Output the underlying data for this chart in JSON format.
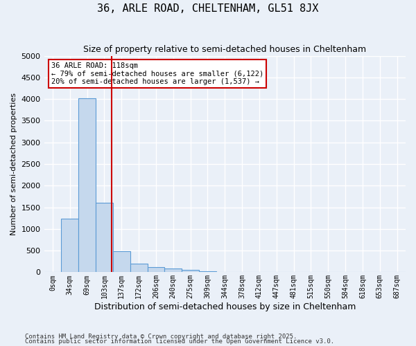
{
  "title": "36, ARLE ROAD, CHELTENHAM, GL51 8JX",
  "subtitle": "Size of property relative to semi-detached houses in Cheltenham",
  "xlabel": "Distribution of semi-detached houses by size in Cheltenham",
  "ylabel": "Number of semi-detached properties",
  "footnote1": "Contains HM Land Registry data © Crown copyright and database right 2025.",
  "footnote2": "Contains public sector information licensed under the Open Government Licence v3.0.",
  "bin_labels": [
    "0sqm",
    "34sqm",
    "69sqm",
    "103sqm",
    "137sqm",
    "172sqm",
    "206sqm",
    "240sqm",
    "275sqm",
    "309sqm",
    "344sqm",
    "378sqm",
    "412sqm",
    "447sqm",
    "481sqm",
    "515sqm",
    "550sqm",
    "584sqm",
    "618sqm",
    "653sqm",
    "687sqm"
  ],
  "bar_values": [
    10,
    1230,
    4020,
    1600,
    480,
    200,
    120,
    90,
    55,
    20,
    0,
    0,
    0,
    0,
    0,
    0,
    0,
    0,
    0,
    0,
    0
  ],
  "bar_color": "#c5d8ed",
  "bar_edge_color": "#5b9bd5",
  "background_color": "#eaf0f8",
  "grid_color": "#ffffff",
  "vline_x": 3.44,
  "vline_color": "#cc0000",
  "annotation_title": "36 ARLE ROAD: 118sqm",
  "annotation_line1": "← 79% of semi-detached houses are smaller (6,122)",
  "annotation_line2": "20% of semi-detached houses are larger (1,537) →",
  "annotation_box_color": "#ffffff",
  "annotation_box_edge": "#cc0000",
  "ylim": [
    0,
    5000
  ],
  "yticks": [
    0,
    500,
    1000,
    1500,
    2000,
    2500,
    3000,
    3500,
    4000,
    4500,
    5000
  ]
}
